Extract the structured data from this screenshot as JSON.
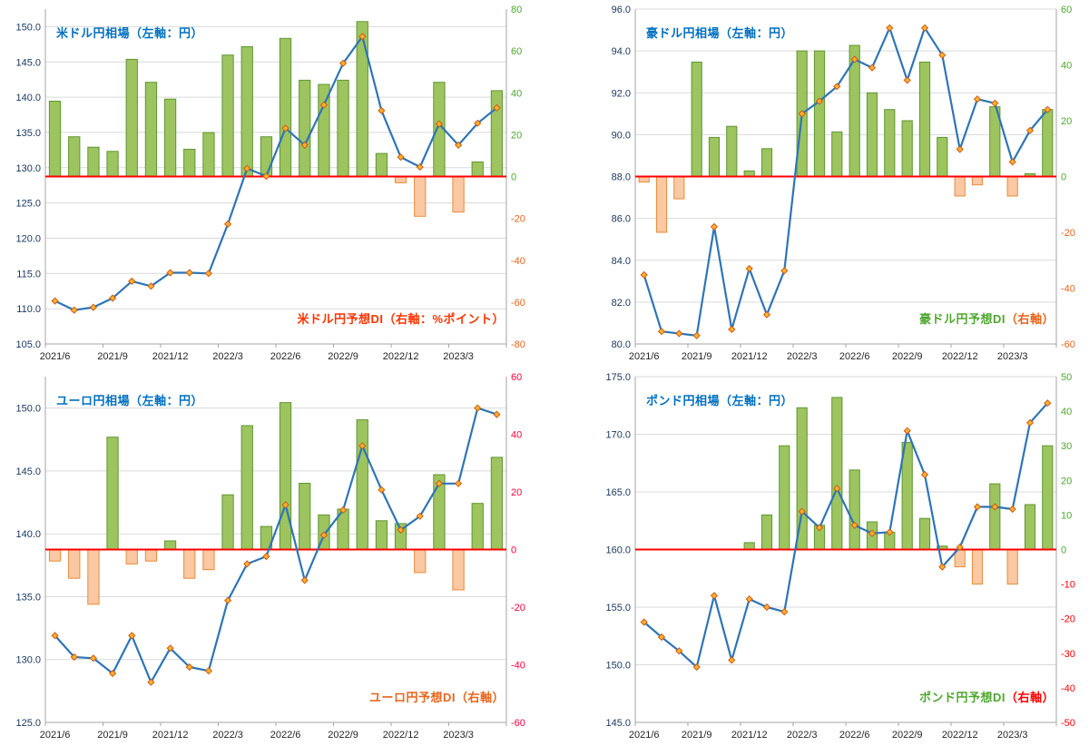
{
  "style": {
    "background": "#FFFFFF",
    "grid_color": "#D9D9D9",
    "axis_color": "#A6A6A6",
    "zero_line_color": "#FF0000",
    "line_color": "#2E75B6",
    "marker_fill": "#FFB030",
    "marker_stroke": "#CC5B12",
    "bar_pos_fill": "#9DC45F",
    "bar_pos_stroke": "#5E9732",
    "bar_neg_fill": "#FAC8A2",
    "bar_neg_stroke": "#E78C3C",
    "x_tick_color": "#262626"
  },
  "chart_data": [
    {
      "name": "usd-jpy",
      "type": "combo",
      "title": "米ドル円相場（左軸：円）",
      "title_color": "#0070C0",
      "di_label_parts": [
        {
          "text": "米ドル円予想DI（右軸：%ポイント）",
          "color": "#FF3300"
        }
      ],
      "categories": [
        "2021/6",
        "2021/7",
        "2021/8",
        "2021/9",
        "2021/10",
        "2021/11",
        "2021/12",
        "2022/1",
        "2022/2",
        "2022/3",
        "2022/4",
        "2022/5",
        "2022/6",
        "2022/7",
        "2022/8",
        "2022/9",
        "2022/10",
        "2022/11",
        "2022/12",
        "2023/1",
        "2023/2",
        "2023/3",
        "2023/4",
        "2023/5"
      ],
      "x_tick_indices": [
        0,
        3,
        6,
        9,
        12,
        15,
        18,
        21
      ],
      "left_axis": {
        "min": 105.0,
        "max": 152.5,
        "tick_min": 105.0,
        "tick_max": 150.0,
        "tick_step": 5.0,
        "decimals": 1,
        "color": "#17365D"
      },
      "right_axis": {
        "min": -80,
        "max": 80,
        "tick_step": 20,
        "pos_color": "#4EA72E",
        "neg_color": "#E8641B"
      },
      "series": [
        {
          "name": "米ドル円相場",
          "type": "line",
          "axis": "left",
          "values": [
            111.1,
            109.8,
            110.2,
            111.5,
            113.9,
            113.2,
            115.1,
            115.1,
            115.0,
            122.0,
            129.9,
            128.8,
            135.6,
            133.2,
            138.9,
            144.8,
            148.6,
            138.1,
            131.5,
            130.1,
            136.2,
            133.2,
            136.3,
            138.5
          ]
        },
        {
          "name": "米ドル円予想DI",
          "type": "bar",
          "axis": "right",
          "values": [
            36,
            19,
            14,
            12,
            56,
            45,
            37,
            13,
            21,
            58,
            62,
            19,
            66,
            46,
            44,
            46,
            74,
            11,
            -3,
            -19,
            45,
            -17,
            7,
            41
          ]
        }
      ]
    },
    {
      "name": "aud-jpy",
      "type": "combo",
      "title": "豪ドル円相場（左軸：円）",
      "title_color": "#0070C0",
      "di_label_parts": [
        {
          "text": "豪ドル円予想DI",
          "color": "#4EA72E"
        },
        {
          "text": "（右軸）",
          "color": "#E8641B"
        }
      ],
      "categories": [
        "2021/6",
        "2021/7",
        "2021/8",
        "2021/9",
        "2021/10",
        "2021/11",
        "2021/12",
        "2022/1",
        "2022/2",
        "2022/3",
        "2022/4",
        "2022/5",
        "2022/6",
        "2022/7",
        "2022/8",
        "2022/9",
        "2022/10",
        "2022/11",
        "2022/12",
        "2023/1",
        "2023/2",
        "2023/3",
        "2023/4",
        "2023/5"
      ],
      "x_tick_indices": [
        0,
        3,
        6,
        9,
        12,
        15,
        18,
        21
      ],
      "left_axis": {
        "min": 80.0,
        "max": 96.0,
        "tick_min": 80.0,
        "tick_max": 96.0,
        "tick_step": 2.0,
        "decimals": 1,
        "color": "#17365D"
      },
      "right_axis": {
        "min": -60,
        "max": 60,
        "tick_step": 20,
        "pos_color": "#4EA72E",
        "neg_color": "#E8641B"
      },
      "series": [
        {
          "name": "豪ドル円相場",
          "type": "line",
          "axis": "left",
          "values": [
            83.3,
            80.6,
            80.5,
            80.4,
            85.6,
            80.7,
            83.6,
            81.4,
            83.5,
            91.0,
            91.6,
            92.3,
            93.6,
            93.2,
            95.1,
            92.6,
            95.1,
            93.8,
            89.3,
            91.7,
            91.5,
            88.7,
            90.2,
            91.2
          ]
        },
        {
          "name": "豪ドル円予想DI",
          "type": "bar",
          "axis": "right",
          "values": [
            -2,
            -20,
            -8,
            41,
            14,
            18,
            2,
            10,
            0,
            45,
            45,
            16,
            47,
            30,
            24,
            20,
            41,
            14,
            -7,
            -3,
            25,
            -7,
            1,
            24
          ]
        }
      ]
    },
    {
      "name": "eur-jpy",
      "type": "combo",
      "title": "ユーロ円相場（左軸：円）",
      "title_color": "#0070C0",
      "di_label_parts": [
        {
          "text": "ユーロ円予想DI（右軸）",
          "color": "#E8641B"
        }
      ],
      "categories": [
        "2021/6",
        "2021/7",
        "2021/8",
        "2021/9",
        "2021/10",
        "2021/11",
        "2021/12",
        "2022/1",
        "2022/2",
        "2022/3",
        "2022/4",
        "2022/5",
        "2022/6",
        "2022/7",
        "2022/8",
        "2022/9",
        "2022/10",
        "2022/11",
        "2022/12",
        "2023/1",
        "2023/2",
        "2023/3",
        "2023/4",
        "2023/5"
      ],
      "x_tick_indices": [
        0,
        3,
        6,
        9,
        12,
        15,
        18,
        21
      ],
      "left_axis": {
        "min": 125.0,
        "max": 152.5,
        "tick_min": 125.0,
        "tick_max": 150.0,
        "tick_step": 5.0,
        "decimals": 1,
        "color": "#17365D"
      },
      "right_axis": {
        "min": -60,
        "max": 60,
        "tick_step": 20,
        "pos_color": "#FF0040",
        "neg_color": "#FF0040"
      },
      "series": [
        {
          "name": "ユーロ円相場",
          "type": "line",
          "axis": "left",
          "values": [
            131.9,
            130.2,
            130.1,
            128.9,
            131.9,
            128.2,
            130.9,
            129.4,
            129.1,
            134.7,
            137.6,
            138.2,
            142.3,
            136.3,
            139.9,
            141.9,
            147.0,
            143.5,
            140.3,
            141.4,
            144.0,
            144.0,
            150.0,
            149.5
          ]
        },
        {
          "name": "ユーロ円予想DI",
          "type": "bar",
          "axis": "right",
          "values": [
            -4,
            -10,
            -19,
            39,
            -5,
            -4,
            3,
            -10,
            -7,
            19,
            43,
            8,
            51,
            23,
            12,
            14,
            45,
            10,
            9,
            -8,
            26,
            -14,
            16,
            32
          ]
        }
      ]
    },
    {
      "name": "gbp-jpy",
      "type": "combo",
      "title": "ポンド円相場（左軸：円）",
      "title_color": "#0070C0",
      "di_label_parts": [
        {
          "text": "ポンド円予想DI",
          "color": "#4EA72E"
        },
        {
          "text": "（右軸）",
          "color": "#FF0000"
        }
      ],
      "categories": [
        "2021/6",
        "2021/7",
        "2021/8",
        "2021/9",
        "2021/10",
        "2021/11",
        "2021/12",
        "2022/1",
        "2022/2",
        "2022/3",
        "2022/4",
        "2022/5",
        "2022/6",
        "2022/7",
        "2022/8",
        "2022/9",
        "2022/10",
        "2022/11",
        "2022/12",
        "2023/1",
        "2023/2",
        "2023/3",
        "2023/4",
        "2023/5"
      ],
      "x_tick_indices": [
        0,
        3,
        6,
        9,
        12,
        15,
        18,
        21
      ],
      "left_axis": {
        "min": 145.0,
        "max": 175.0,
        "tick_min": 145.0,
        "tick_max": 175.0,
        "tick_step": 5.0,
        "decimals": 1,
        "color": "#17365D"
      },
      "right_axis": {
        "min": -50,
        "max": 50,
        "tick_step": 10,
        "pos_color": "#4EA72E",
        "neg_color": "#FF0000"
      },
      "series": [
        {
          "name": "ポンド円相場",
          "type": "line",
          "axis": "left",
          "values": [
            153.7,
            152.4,
            151.2,
            149.8,
            156.0,
            150.4,
            155.7,
            155.0,
            154.6,
            163.3,
            161.9,
            165.3,
            162.1,
            161.4,
            161.5,
            170.3,
            166.5,
            158.5,
            160.2,
            163.7,
            163.7,
            163.5,
            171.0,
            172.7
          ]
        },
        {
          "name": "ポンド円予想DI",
          "type": "bar",
          "axis": "right",
          "values": [
            0,
            0,
            0,
            0,
            0,
            0,
            2,
            10,
            30,
            41,
            7,
            44,
            23,
            8,
            5,
            31,
            9,
            1,
            -5,
            -10,
            19,
            -10,
            13,
            30
          ]
        }
      ]
    }
  ]
}
